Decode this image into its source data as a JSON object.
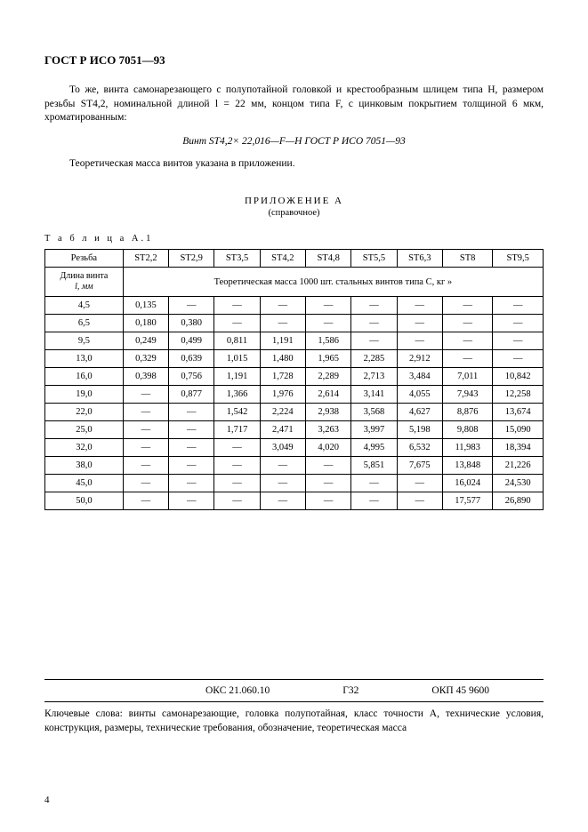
{
  "doc_title": "ГОСТ Р ИСО 7051—93",
  "para1": "То же, винта самонарезающего с полупотайной головкой и крестообразным шлицем типа H, размером резьбы ST4,2, номинальной длиной l = 22 мм, концом типа F, с цинковым покрытием толщиной 6 мкм, хроматированным:",
  "designation": "Винт ST4,2× 22,016—F—H ГОСТ Р ИСО 7051—93",
  "para2": "Теоретическая масса винтов указана в приложении.",
  "appendix_title": "ПРИЛОЖЕНИЕ А",
  "appendix_sub": "(справочное)",
  "table_label": "Т а б л и ц а  А.1",
  "table": {
    "col_headers": [
      "Резьба",
      "ST2,2",
      "ST2,9",
      "ST3,5",
      "ST4,2",
      "ST4,8",
      "ST5,5",
      "ST6,3",
      "ST8",
      "ST9,5"
    ],
    "row_label_line1": "Длина винта",
    "row_label_line2": "l, мм",
    "subheader": "Теоретическая масса 1000 шт. стальных винтов типа C, кг »",
    "rows": [
      {
        "len": "4,5",
        "vals": [
          "0,135",
          "—",
          "—",
          "—",
          "—",
          "—",
          "—",
          "—",
          "—"
        ]
      },
      {
        "len": "6,5",
        "vals": [
          "0,180",
          "0,380",
          "—",
          "—",
          "—",
          "—",
          "—",
          "—",
          "—"
        ]
      },
      {
        "len": "9,5",
        "vals": [
          "0,249",
          "0,499",
          "0,811",
          "1,191",
          "1,586",
          "—",
          "—",
          "—",
          "—"
        ]
      },
      {
        "len": "13,0",
        "vals": [
          "0,329",
          "0,639",
          "1,015",
          "1,480",
          "1,965",
          "2,285",
          "2,912",
          "—",
          "—"
        ]
      },
      {
        "len": "16,0",
        "vals": [
          "0,398",
          "0,756",
          "1,191",
          "1,728",
          "2,289",
          "2,713",
          "3,484",
          "7,011",
          "10,842"
        ]
      },
      {
        "len": "19,0",
        "vals": [
          "—",
          "0,877",
          "1,366",
          "1,976",
          "2,614",
          "3,141",
          "4,055",
          "7,943",
          "12,258"
        ]
      },
      {
        "len": "22,0",
        "vals": [
          "—",
          "—",
          "1,542",
          "2,224",
          "2,938",
          "3,568",
          "4,627",
          "8,876",
          "13,674"
        ]
      },
      {
        "len": "25,0",
        "vals": [
          "—",
          "—",
          "1,717",
          "2,471",
          "3,263",
          "3,997",
          "5,198",
          "9,808",
          "15,090"
        ]
      },
      {
        "len": "32,0",
        "vals": [
          "—",
          "—",
          "—",
          "3,049",
          "4,020",
          "4,995",
          "6,532",
          "11,983",
          "18,394"
        ]
      },
      {
        "len": "38,0",
        "vals": [
          "—",
          "—",
          "—",
          "—",
          "—",
          "5,851",
          "7,675",
          "13,848",
          "21,226"
        ]
      },
      {
        "len": "45,0",
        "vals": [
          "—",
          "—",
          "—",
          "—",
          "—",
          "—",
          "—",
          "16,024",
          "24,530"
        ]
      },
      {
        "len": "50,0",
        "vals": [
          "—",
          "—",
          "—",
          "—",
          "—",
          "—",
          "—",
          "17,577",
          "26,890"
        ]
      }
    ]
  },
  "classifier": {
    "oks": "ОКС 21.060.10",
    "g": "Г32",
    "okp": "ОКП 45 9600"
  },
  "keywords_text": "Ключевые слова: винты самонарезающие, головка полупотайная, класс точности А, технические условия, конструкция, размеры, технические требования, обозначение, теоретическая масса",
  "page_number": "4"
}
